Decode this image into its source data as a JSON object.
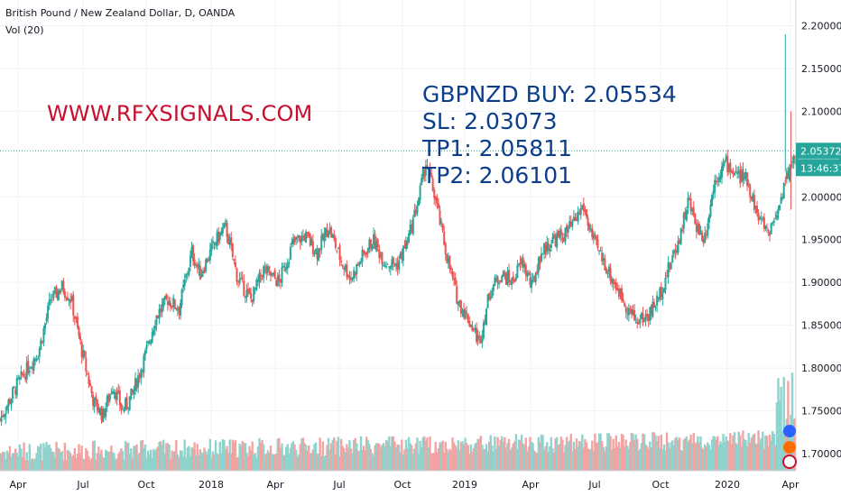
{
  "header": {
    "symbol_line": "British Pound / New Zealand Dollar, D, OANDA",
    "volume_line": "Vol (20)"
  },
  "watermark": "WWW.RFXSIGNALS.COM",
  "signal": {
    "line1": "GBPNZD BUY: 2.05534",
    "line2": "SL: 2.03073",
    "line3": "TP1: 2.05811",
    "line4": "TP2: 2.06101"
  },
  "price_tag": {
    "price": "2.05372",
    "countdown": "13:46:37",
    "color": "#26a69a"
  },
  "colors": {
    "up": "#26a69a",
    "down": "#ef5350",
    "vol_up": "#8ed3cd",
    "vol_down": "#f3a3a1",
    "grid": "#f0f3fa",
    "axis_text": "#131722"
  },
  "chart_data": {
    "type": "candlestick",
    "ylim": [
      1.68,
      2.23
    ],
    "y_ticks": [
      "2.20000",
      "2.15000",
      "2.10000",
      "2.00000",
      "1.95000",
      "1.90000",
      "1.85000",
      "1.80000",
      "1.75000",
      "1.70000"
    ],
    "x_ticks": [
      "Apr",
      "Jul",
      "Oct",
      "2018",
      "Apr",
      "Jul",
      "Oct",
      "2019",
      "Apr",
      "Jul",
      "Oct",
      "2020",
      "Apr"
    ],
    "x_range": [
      "2017-03-01",
      "2020-04-03"
    ],
    "last_price": 2.05372,
    "price_path": [
      [
        "2017-03-01",
        1.74
      ],
      [
        "2017-03-25",
        1.78
      ],
      [
        "2017-04-25",
        1.82
      ],
      [
        "2017-05-12",
        1.88
      ],
      [
        "2017-05-28",
        1.895
      ],
      [
        "2017-06-10",
        1.88
      ],
      [
        "2017-06-25",
        1.82
      ],
      [
        "2017-07-12",
        1.76
      ],
      [
        "2017-07-25",
        1.745
      ],
      [
        "2017-08-08",
        1.78
      ],
      [
        "2017-08-22",
        1.75
      ],
      [
        "2017-09-05",
        1.77
      ],
      [
        "2017-09-25",
        1.82
      ],
      [
        "2017-10-08",
        1.86
      ],
      [
        "2017-10-25",
        1.88
      ],
      [
        "2017-11-10",
        1.87
      ],
      [
        "2017-11-28",
        1.935
      ],
      [
        "2017-12-10",
        1.91
      ],
      [
        "2018-01-02",
        1.95
      ],
      [
        "2018-01-15",
        1.965
      ],
      [
        "2018-02-01",
        1.905
      ],
      [
        "2018-02-20",
        1.88
      ],
      [
        "2018-03-10",
        1.915
      ],
      [
        "2018-04-01",
        1.9
      ],
      [
        "2018-04-20",
        1.945
      ],
      [
        "2018-05-08",
        1.955
      ],
      [
        "2018-05-25",
        1.935
      ],
      [
        "2018-06-10",
        1.965
      ],
      [
        "2018-06-28",
        1.925
      ],
      [
        "2018-07-12",
        1.905
      ],
      [
        "2018-07-28",
        1.93
      ],
      [
        "2018-08-12",
        1.95
      ],
      [
        "2018-08-28",
        1.925
      ],
      [
        "2018-09-15",
        1.92
      ],
      [
        "2018-10-01",
        1.95
      ],
      [
        "2018-10-15",
        1.995
      ],
      [
        "2018-10-26",
        2.04
      ],
      [
        "2018-11-08",
        2.0
      ],
      [
        "2018-11-25",
        1.93
      ],
      [
        "2018-12-10",
        1.88
      ],
      [
        "2018-12-30",
        1.85
      ],
      [
        "2019-01-10",
        1.83
      ],
      [
        "2019-01-25",
        1.89
      ],
      [
        "2019-02-10",
        1.91
      ],
      [
        "2019-02-25",
        1.9
      ],
      [
        "2019-03-12",
        1.925
      ],
      [
        "2019-03-25",
        1.895
      ],
      [
        "2019-04-08",
        1.935
      ],
      [
        "2019-04-25",
        1.95
      ],
      [
        "2019-05-10",
        1.955
      ],
      [
        "2019-05-25",
        1.97
      ],
      [
        "2019-06-06",
        1.99
      ],
      [
        "2019-06-20",
        1.95
      ],
      [
        "2019-07-05",
        1.925
      ],
      [
        "2019-07-20",
        1.9
      ],
      [
        "2019-08-05",
        1.875
      ],
      [
        "2019-08-20",
        1.855
      ],
      [
        "2019-09-05",
        1.86
      ],
      [
        "2019-09-20",
        1.88
      ],
      [
        "2019-10-05",
        1.915
      ],
      [
        "2019-10-20",
        1.95
      ],
      [
        "2019-11-02",
        1.995
      ],
      [
        "2019-11-15",
        1.965
      ],
      [
        "2019-11-25",
        1.95
      ],
      [
        "2019-12-10",
        2.02
      ],
      [
        "2019-12-25",
        2.04
      ],
      [
        "2020-01-10",
        2.025
      ],
      [
        "2020-01-25",
        2.02
      ],
      [
        "2020-02-10",
        1.975
      ],
      [
        "2020-02-25",
        1.96
      ],
      [
        "2020-03-08",
        1.985
      ],
      [
        "2020-03-20",
        2.02
      ],
      [
        "2020-03-30",
        2.045
      ],
      [
        "2020-04-03",
        2.0537
      ]
    ]
  }
}
